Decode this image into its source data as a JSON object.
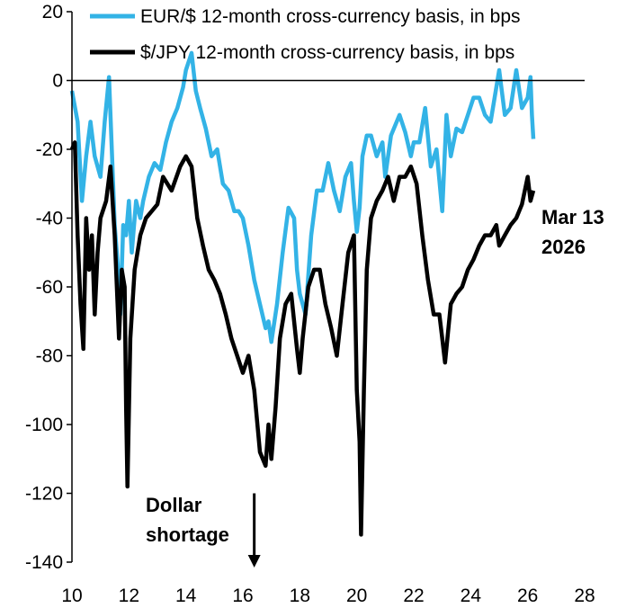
{
  "chart_data": {
    "type": "line",
    "title": "",
    "xlabel": "",
    "ylabel": "",
    "xlim": [
      10,
      28
    ],
    "ylim": [
      -140,
      20
    ],
    "x_ticks": [
      10,
      12,
      14,
      16,
      18,
      20,
      22,
      24,
      26,
      28
    ],
    "y_ticks": [
      20,
      0,
      -20,
      -40,
      -60,
      -80,
      -100,
      -120,
      -140
    ],
    "grid": false,
    "legend_position": "top",
    "series": [
      {
        "name": "EUR/$ 12-month cross-currency basis, in bps",
        "color": "#33b3e6",
        "x": [
          10.0,
          10.2,
          10.35,
          10.5,
          10.65,
          10.8,
          11.0,
          11.15,
          11.3,
          11.4,
          11.5,
          11.6,
          11.7,
          11.8,
          11.9,
          12.0,
          12.1,
          12.25,
          12.4,
          12.5,
          12.7,
          12.9,
          13.1,
          13.3,
          13.5,
          13.7,
          13.9,
          14.0,
          14.2,
          14.35,
          14.5,
          14.7,
          14.9,
          15.1,
          15.3,
          15.5,
          15.7,
          15.85,
          16.0,
          16.2,
          16.4,
          16.6,
          16.8,
          16.9,
          17.0,
          17.2,
          17.4,
          17.6,
          17.8,
          17.9,
          18.0,
          18.2,
          18.4,
          18.6,
          18.8,
          19.0,
          19.2,
          19.4,
          19.6,
          19.8,
          19.9,
          20.0,
          20.1,
          20.2,
          20.35,
          20.5,
          20.7,
          20.9,
          21.0,
          21.2,
          21.5,
          21.7,
          21.9,
          22.0,
          22.2,
          22.4,
          22.6,
          22.8,
          23.0,
          23.15,
          23.3,
          23.5,
          23.7,
          23.9,
          24.1,
          24.3,
          24.5,
          24.7,
          24.9,
          25.0,
          25.2,
          25.4,
          25.6,
          25.8,
          26.0,
          26.1,
          26.15,
          26.2
        ],
        "values": [
          -3,
          -12,
          -35,
          -22,
          -12,
          -22,
          -28,
          -12,
          1,
          -20,
          -42,
          -53,
          -68,
          -42,
          -45,
          -35,
          -50,
          -35,
          -40,
          -35,
          -28,
          -24,
          -26,
          -18,
          -12,
          -8,
          -2,
          3,
          8,
          -3,
          -8,
          -14,
          -22,
          -20,
          -30,
          -32,
          -38,
          -38,
          -40,
          -48,
          -58,
          -65,
          -72,
          -70,
          -76,
          -65,
          -50,
          -37,
          -40,
          -55,
          -62,
          -68,
          -45,
          -32,
          -32,
          -24,
          -32,
          -38,
          -28,
          -24,
          -35,
          -44,
          -37,
          -22,
          -16,
          -16,
          -22,
          -18,
          -28,
          -16,
          -10,
          -15,
          -22,
          -18,
          -18,
          -8,
          -25,
          -20,
          -38,
          -10,
          -22,
          -14,
          -15,
          -10,
          -5,
          -5,
          -10,
          -12,
          -2,
          3,
          -10,
          -8,
          3,
          -8,
          -5,
          1,
          -10,
          -17
        ]
      },
      {
        "name": "$/JPY 12-month cross-currency basis, in bps",
        "color": "#000000",
        "x": [
          10.0,
          10.1,
          10.2,
          10.3,
          10.4,
          10.5,
          10.6,
          10.7,
          10.8,
          10.9,
          11.0,
          11.2,
          11.35,
          11.5,
          11.65,
          11.75,
          11.85,
          11.9,
          11.95,
          12.05,
          12.2,
          12.4,
          12.6,
          12.8,
          13.0,
          13.2,
          13.5,
          13.8,
          14.0,
          14.2,
          14.4,
          14.6,
          14.8,
          15.0,
          15.2,
          15.4,
          15.6,
          15.8,
          16.0,
          16.2,
          16.4,
          16.6,
          16.8,
          16.9,
          17.0,
          17.15,
          17.3,
          17.5,
          17.7,
          17.9,
          18.0,
          18.1,
          18.3,
          18.5,
          18.7,
          18.9,
          19.1,
          19.3,
          19.5,
          19.7,
          19.9,
          20.0,
          20.1,
          20.15,
          20.25,
          20.35,
          20.5,
          20.7,
          20.9,
          21.1,
          21.3,
          21.5,
          21.7,
          21.9,
          22.1,
          22.3,
          22.5,
          22.7,
          22.9,
          23.0,
          23.1,
          23.3,
          23.5,
          23.7,
          23.9,
          24.1,
          24.3,
          24.5,
          24.7,
          24.9,
          25.0,
          25.2,
          25.4,
          25.6,
          25.8,
          26.0,
          26.1,
          26.2
        ],
        "values": [
          -20,
          -18,
          -45,
          -65,
          -78,
          -40,
          -55,
          -45,
          -68,
          -50,
          -40,
          -35,
          -25,
          -45,
          -75,
          -55,
          -60,
          -95,
          -118,
          -75,
          -55,
          -45,
          -40,
          -38,
          -36,
          -28,
          -32,
          -25,
          -22,
          -25,
          -40,
          -48,
          -55,
          -58,
          -62,
          -68,
          -75,
          -80,
          -85,
          -80,
          -90,
          -108,
          -112,
          -100,
          -110,
          -95,
          -75,
          -65,
          -62,
          -78,
          -85,
          -75,
          -60,
          -55,
          -55,
          -65,
          -72,
          -80,
          -65,
          -50,
          -45,
          -90,
          -105,
          -132,
          -90,
          -55,
          -40,
          -35,
          -32,
          -28,
          -35,
          -28,
          -28,
          -25,
          -30,
          -45,
          -58,
          -68,
          -68,
          -75,
          -82,
          -65,
          -62,
          -60,
          -55,
          -52,
          -48,
          -45,
          -45,
          -42,
          -48,
          -45,
          -42,
          -40,
          -36,
          -28,
          -35,
          -32
        ]
      }
    ],
    "annotations": [
      {
        "lines": [
          "Mar 13",
          "2026"
        ],
        "at_x": 26.2,
        "at_y": -40
      },
      {
        "lines": [
          "Dollar",
          "shortage"
        ],
        "arrow_x": 16.4,
        "arrow_from_y": -120,
        "arrow_to_y": -140
      }
    ]
  }
}
